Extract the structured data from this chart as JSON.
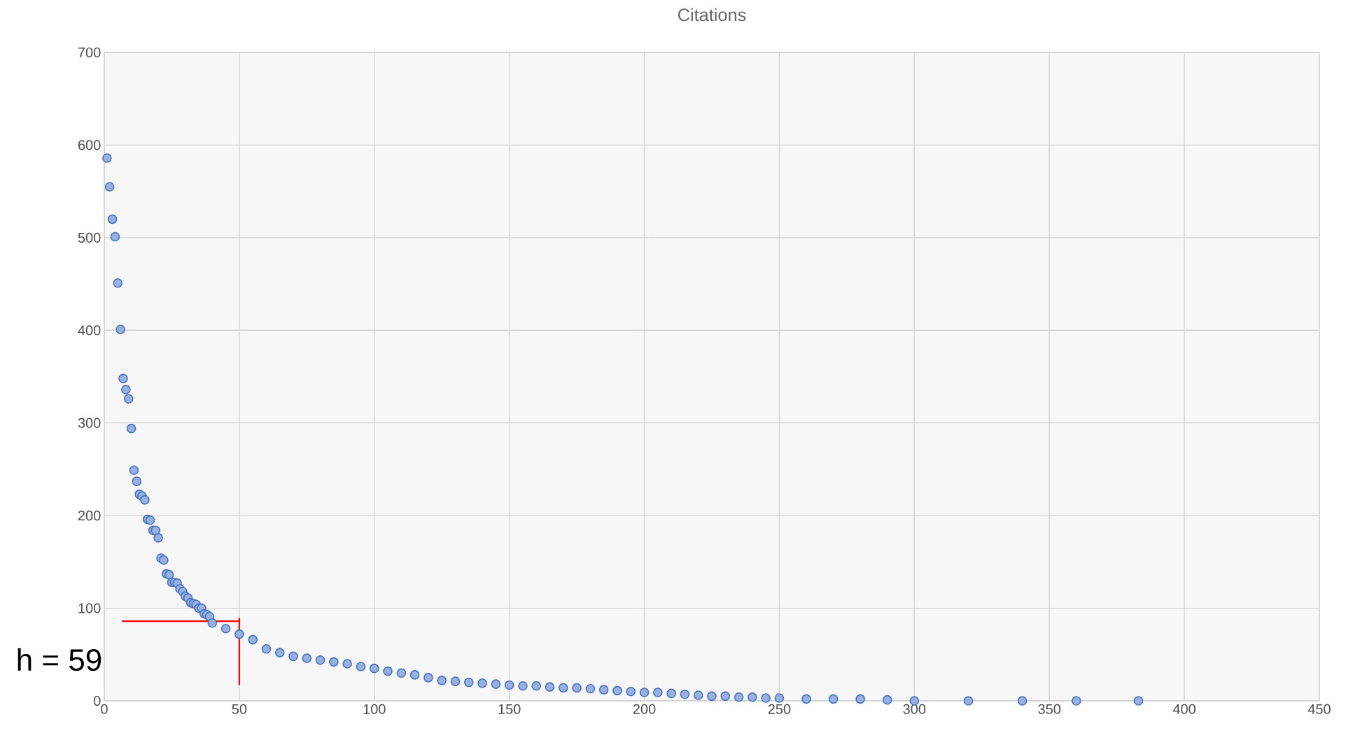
{
  "chart_data": {
    "type": "scatter",
    "title": "Citations",
    "xlim": [
      0,
      450
    ],
    "ylim": [
      0,
      700
    ],
    "xticks": [
      0,
      50,
      100,
      150,
      200,
      250,
      300,
      350,
      400,
      450
    ],
    "yticks": [
      0,
      100,
      200,
      300,
      400,
      500,
      600,
      700
    ],
    "grid": true,
    "marker": "circle",
    "annotations": [
      "h = 59"
    ],
    "series": [
      {
        "color": "#4472c4",
        "x": [
          1,
          2,
          3,
          4,
          5,
          6,
          7,
          8,
          9,
          10,
          11,
          12,
          13,
          14,
          15,
          16,
          17,
          18,
          19,
          20,
          21,
          22,
          23,
          24,
          25,
          26,
          27,
          28,
          29,
          30,
          31,
          32,
          33,
          34,
          35,
          36,
          37,
          38,
          39,
          40,
          45,
          50,
          55,
          60,
          65,
          70,
          75,
          80,
          85,
          90,
          95,
          100,
          105,
          110,
          115,
          120,
          125,
          130,
          135,
          140,
          145,
          150,
          155,
          160,
          165,
          170,
          175,
          180,
          185,
          190,
          195,
          200,
          205,
          210,
          215,
          220,
          225,
          230,
          235,
          240,
          245,
          250,
          260,
          270,
          280,
          290,
          300,
          320,
          340,
          360,
          383
        ],
        "values": [
          586,
          555,
          520,
          501,
          451,
          401,
          348,
          336,
          326,
          294,
          249,
          237,
          223,
          221,
          217,
          196,
          195,
          184,
          184,
          176,
          154,
          152,
          137,
          136,
          128,
          128,
          127,
          121,
          118,
          113,
          111,
          106,
          105,
          104,
          100,
          100,
          94,
          93,
          91,
          84,
          78,
          72,
          66,
          56,
          52,
          48,
          46,
          44,
          42,
          40,
          37,
          35,
          32,
          30,
          28,
          25,
          22,
          21,
          20,
          19,
          18,
          17,
          16,
          16,
          15,
          14,
          14,
          13,
          12,
          11,
          10,
          9,
          9,
          8,
          7,
          6,
          5,
          5,
          4,
          4,
          3,
          3,
          2,
          2,
          2,
          1,
          0,
          0,
          0,
          0,
          0
        ]
      },
      {
        "type": "line",
        "color": "#ff0000",
        "marker": "none",
        "x": [
          6.5,
          50,
          50,
          50
        ],
        "values": [
          86,
          86,
          89,
          17
        ]
      }
    ]
  }
}
